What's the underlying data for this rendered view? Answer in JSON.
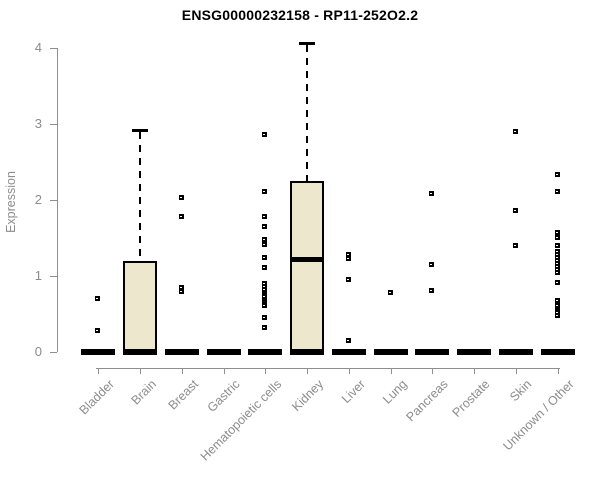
{
  "page": {
    "background": "#ffffff"
  },
  "chart_data": {
    "type": "boxplot",
    "title": "ENSG00000232158 - RP11-252O2.2",
    "ylabel": "Expression",
    "xlabel": "",
    "ylim": [
      0,
      4
    ],
    "yticks": [
      0,
      1,
      2,
      3,
      4
    ],
    "grid": false,
    "legend": false,
    "colors": {
      "box_fill": "#ede8cd",
      "box_border": "#000000",
      "median": "#000000",
      "outlier": "#000000",
      "axis": "#8f8f8f",
      "tick_text": "#8c8c8c",
      "title_text": "#000000"
    },
    "categories": [
      "Bladder",
      "Brain",
      "Breast",
      "Gastric",
      "Hematopoietic cells",
      "Kidney",
      "Liver",
      "Lung",
      "Pancreas",
      "Prostate",
      "Skin",
      "Unknown / Other"
    ],
    "series": [
      {
        "name": "Bladder",
        "whisker_low": 0,
        "q1": 0,
        "median": 0,
        "q3": 0,
        "whisker_high": 0,
        "outliers": [
          0.7,
          0.28
        ]
      },
      {
        "name": "Brain",
        "whisker_low": 0,
        "q1": 0,
        "median": 0,
        "q3": 1.2,
        "whisker_high": 2.92,
        "outliers": []
      },
      {
        "name": "Breast",
        "whisker_low": 0,
        "q1": 0,
        "median": 0,
        "q3": 0,
        "whisker_high": 0,
        "outliers": [
          2.02,
          1.78,
          0.84,
          0.79
        ]
      },
      {
        "name": "Gastric",
        "whisker_low": 0,
        "q1": 0,
        "median": 0,
        "q3": 0,
        "whisker_high": 0,
        "outliers": []
      },
      {
        "name": "Hematopoietic cells",
        "whisker_low": 0,
        "q1": 0,
        "median": 0,
        "q3": 0,
        "whisker_high": 0,
        "outliers": [
          2.85,
          2.1,
          1.77,
          1.64,
          1.47,
          1.41,
          1.24,
          1.11,
          0.9,
          0.85,
          0.81,
          0.78,
          0.75,
          0.72,
          0.69,
          0.66,
          0.63,
          0.6,
          0.45,
          0.32
        ]
      },
      {
        "name": "Kidney",
        "whisker_low": 0,
        "q1": 0,
        "median": 1.22,
        "q3": 2.25,
        "whisker_high": 4.07,
        "outliers": []
      },
      {
        "name": "Liver",
        "whisker_low": 0,
        "q1": 0,
        "median": 0,
        "q3": 0,
        "whisker_high": 0,
        "outliers": [
          1.27,
          1.22,
          0.95,
          0.15
        ]
      },
      {
        "name": "Lung",
        "whisker_low": 0,
        "q1": 0,
        "median": 0,
        "q3": 0,
        "whisker_high": 0,
        "outliers": [
          0.77
        ]
      },
      {
        "name": "Pancreas",
        "whisker_low": 0,
        "q1": 0,
        "median": 0,
        "q3": 0,
        "whisker_high": 0,
        "outliers": [
          2.08,
          1.14,
          0.8
        ]
      },
      {
        "name": "Prostate",
        "whisker_low": 0,
        "q1": 0,
        "median": 0,
        "q3": 0,
        "whisker_high": 0,
        "outliers": []
      },
      {
        "name": "Skin",
        "whisker_low": 0,
        "q1": 0,
        "median": 0,
        "q3": 0,
        "whisker_high": 0,
        "outliers": [
          2.89,
          1.85,
          1.4
        ]
      },
      {
        "name": "Unknown / Other",
        "whisker_low": 0,
        "q1": 0,
        "median": 0,
        "q3": 0,
        "whisker_high": 0,
        "outliers": [
          2.33,
          2.11,
          1.57,
          1.5,
          1.39,
          1.31,
          1.28,
          1.24,
          1.2,
          1.16,
          1.12,
          1.08,
          1.04,
          0.91,
          0.67,
          0.63,
          0.6,
          0.57,
          0.54,
          0.51,
          0.47
        ]
      }
    ]
  }
}
